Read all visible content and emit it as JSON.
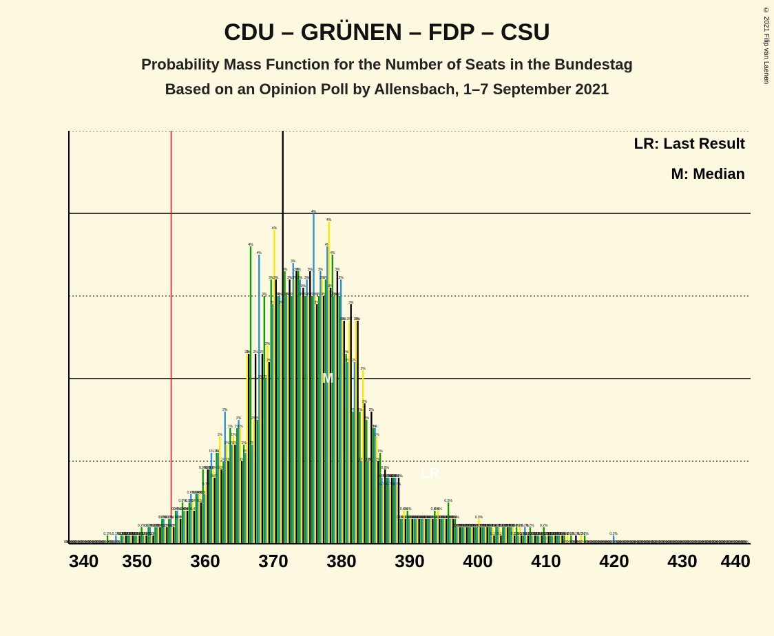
{
  "copyright": "© 2021 Filip van Laenen",
  "title": "CDU – GRÜNEN – FDP – CSU",
  "subtitle1": "Probability Mass Function for the Number of Seats in the Bundestag",
  "subtitle2": "Based on an Opinion Poll by Allensbach, 1–7 September 2021",
  "legend": {
    "lr": "LR: Last Result",
    "m": "M: Median"
  },
  "marker_M": "M",
  "marker_LR": "LR",
  "chart": {
    "type": "bar",
    "background_color": "#fdf8e0",
    "axis_color": "#000000",
    "grid_color": "#000000",
    "lr_line_color": "#e30613",
    "series_colors": [
      "#0d9c00",
      "#2a8fd6",
      "#ffe600",
      "#000000"
    ],
    "xlim": [
      340,
      440
    ],
    "ylim": [
      0,
      5
    ],
    "xtick_step": 10,
    "ytick_major": [
      2,
      4
    ],
    "ytick_minor": [
      1,
      3,
      5
    ],
    "lr_x": 355,
    "median_x": 378,
    "lr_marker_x": 393,
    "title_fontsize": 34,
    "subtitle_fontsize": 22,
    "tick_fontsize": 26,
    "legend_fontsize": 22,
    "bar_group_width_ratio": 0.95,
    "data": {
      "340": [
        0,
        0,
        0,
        0
      ],
      "341": [
        0,
        0,
        0,
        0
      ],
      "342": [
        0,
        0,
        0,
        0
      ],
      "343": [
        0,
        0,
        0,
        0
      ],
      "344": [
        0,
        0,
        0,
        0
      ],
      "345": [
        0,
        0,
        0,
        0
      ],
      "346": [
        0.1,
        0.0,
        0.0,
        0.0
      ],
      "347": [
        0.0,
        0.1,
        0.0,
        0.0
      ],
      "348": [
        0.1,
        0.1,
        0.1,
        0.1
      ],
      "349": [
        0.1,
        0.1,
        0.1,
        0.1
      ],
      "350": [
        0.1,
        0.1,
        0.1,
        0.1
      ],
      "351": [
        0.2,
        0.1,
        0.1,
        0.1
      ],
      "352": [
        0.2,
        0.2,
        0.1,
        0.1
      ],
      "353": [
        0.2,
        0.2,
        0.2,
        0.2
      ],
      "354": [
        0.3,
        0.3,
        0.2,
        0.2
      ],
      "355": [
        0.3,
        0.3,
        0.2,
        0.2
      ],
      "356": [
        0.4,
        0.4,
        0.3,
        0.3
      ],
      "357": [
        0.5,
        0.4,
        0.4,
        0.4
      ],
      "358": [
        0.5,
        0.6,
        0.5,
        0.4
      ],
      "359": [
        0.6,
        0.6,
        0.6,
        0.5
      ],
      "360": [
        0.9,
        0.6,
        0.7,
        0.9
      ],
      "361": [
        0.9,
        1.1,
        0.9,
        0.8
      ],
      "362": [
        1.1,
        1.1,
        1.3,
        0.9
      ],
      "363": [
        1.0,
        1.6,
        1.2,
        1.0
      ],
      "364": [
        1.4,
        1.2,
        1.3,
        1.2
      ],
      "365": [
        1.4,
        1.5,
        1.4,
        1.0
      ],
      "366": [
        1.2,
        1.1,
        2.3,
        2.3
      ],
      "367": [
        3.6,
        1.2,
        1.5,
        2.3
      ],
      "368": [
        1.5,
        3.5,
        2.0,
        2.3
      ],
      "369": [
        3.0,
        2.0,
        2.4,
        2.2
      ],
      "370": [
        3.2,
        2.9,
        3.8,
        3.2
      ],
      "371": [
        3.0,
        3.0,
        2.9,
        5.0
      ],
      "372": [
        3.3,
        3.0,
        3.0,
        3.2
      ],
      "373": [
        3.0,
        3.4,
        3.2,
        3.3
      ],
      "374": [
        3.3,
        3.2,
        3.0,
        3.1
      ],
      "375": [
        3.0,
        3.2,
        3.0,
        3.3
      ],
      "376": [
        3.0,
        4.0,
        3.0,
        2.9
      ],
      "377": [
        3.0,
        3.3,
        3.2,
        3.0
      ],
      "378": [
        3.2,
        3.6,
        3.9,
        3.1
      ],
      "379": [
        3.5,
        3.0,
        3.0,
        3.3
      ],
      "380": [
        3.0,
        3.2,
        2.7,
        2.7
      ],
      "381": [
        2.3,
        2.2,
        2.7,
        2.9
      ],
      "382": [
        1.6,
        2.2,
        2.7,
        2.7
      ],
      "383": [
        1.6,
        1.0,
        2.1,
        1.7
      ],
      "384": [
        1.5,
        1.0,
        1.0,
        1.6
      ],
      "385": [
        1.4,
        1.4,
        1.3,
        1.0
      ],
      "386": [
        1.1,
        0.8,
        0.7,
        0.9
      ],
      "387": [
        0.8,
        0.8,
        0.7,
        0.8
      ],
      "388": [
        0.8,
        0.8,
        0.7,
        0.8
      ],
      "389": [
        0.3,
        0.3,
        0.4,
        0.3
      ],
      "390": [
        0.4,
        0.3,
        0.3,
        0.3
      ],
      "391": [
        0.3,
        0.3,
        0.3,
        0.3
      ],
      "392": [
        0.3,
        0.3,
        0.3,
        0.3
      ],
      "393": [
        0.3,
        0.3,
        0.3,
        0.3
      ],
      "394": [
        0.4,
        0.3,
        0.4,
        0.3
      ],
      "395": [
        0.3,
        0.3,
        0.3,
        0.3
      ],
      "396": [
        0.5,
        0.3,
        0.3,
        0.3
      ],
      "397": [
        0.3,
        0.2,
        0.2,
        0.2
      ],
      "398": [
        0.2,
        0.2,
        0.2,
        0.2
      ],
      "399": [
        0.2,
        0.2,
        0.2,
        0.2
      ],
      "400": [
        0.2,
        0.2,
        0.3,
        0.2
      ],
      "401": [
        0.2,
        0.2,
        0.2,
        0.2
      ],
      "402": [
        0.2,
        0.2,
        0.2,
        0.1
      ],
      "403": [
        0.2,
        0.2,
        0.2,
        0.1
      ],
      "404": [
        0.2,
        0.2,
        0.2,
        0.2
      ],
      "405": [
        0.2,
        0.2,
        0.2,
        0.1
      ],
      "406": [
        0.2,
        0.1,
        0.2,
        0.1
      ],
      "407": [
        0.1,
        0.2,
        0.1,
        0.1
      ],
      "408": [
        0.2,
        0.1,
        0.1,
        0.1
      ],
      "409": [
        0.1,
        0.1,
        0.1,
        0.1
      ],
      "410": [
        0.2,
        0.1,
        0.1,
        0.1
      ],
      "411": [
        0.1,
        0.1,
        0.1,
        0.1
      ],
      "412": [
        0.1,
        0.1,
        0.1,
        0.1
      ],
      "413": [
        0.1,
        0.0,
        0.1,
        0.0
      ],
      "414": [
        0.1,
        0.0,
        0.0,
        0.1
      ],
      "415": [
        0.0,
        0.0,
        0.1,
        0.0
      ],
      "416": [
        0.1,
        0.0,
        0.0,
        0.0
      ],
      "417": [
        0.0,
        0.0,
        0.0,
        0.0
      ],
      "418": [
        0.0,
        0.0,
        0.0,
        0.0
      ],
      "419": [
        0.0,
        0.0,
        0.0,
        0.0
      ],
      "420": [
        0.0,
        0.1,
        0.0,
        0.0
      ],
      "421": [
        0.0,
        0.0,
        0.0,
        0.0
      ],
      "422": [
        0.0,
        0.0,
        0.0,
        0.0
      ],
      "423": [
        0.0,
        0.0,
        0.0,
        0.0
      ],
      "424": [
        0.0,
        0.0,
        0.0,
        0.0
      ],
      "425": [
        0,
        0,
        0,
        0
      ],
      "426": [
        0,
        0,
        0,
        0
      ],
      "427": [
        0,
        0,
        0,
        0
      ],
      "428": [
        0,
        0,
        0,
        0
      ],
      "429": [
        0,
        0,
        0,
        0
      ],
      "430": [
        0,
        0,
        0,
        0
      ],
      "431": [
        0,
        0,
        0,
        0
      ],
      "432": [
        0,
        0,
        0,
        0
      ],
      "433": [
        0,
        0,
        0,
        0
      ],
      "434": [
        0,
        0,
        0,
        0
      ],
      "435": [
        0,
        0,
        0,
        0
      ],
      "436": [
        0,
        0,
        0,
        0
      ],
      "437": [
        0,
        0,
        0,
        0
      ],
      "438": [
        0,
        0,
        0,
        0
      ],
      "439": [
        0,
        0,
        0,
        0
      ]
    }
  }
}
